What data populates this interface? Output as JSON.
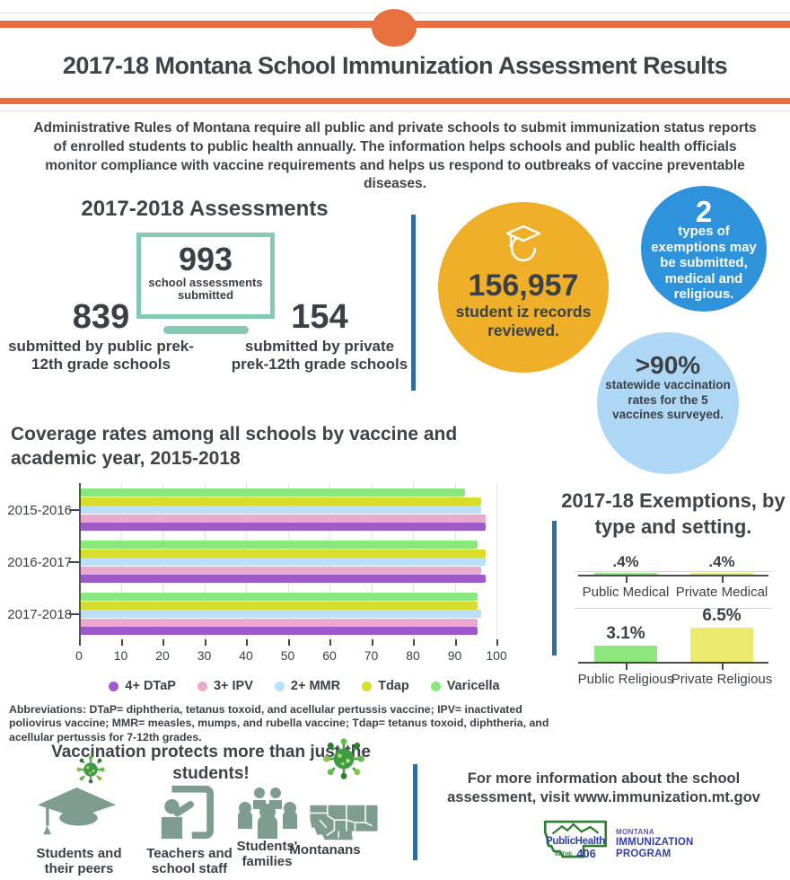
{
  "page": {
    "accent_orange": "#e7713f",
    "teal": "#85c8b3",
    "divider_blue": "#2d6f9e",
    "sage": "#7e9c8f",
    "text_dark": "#3a4045"
  },
  "header": {
    "title": "2017-18 Montana School Immunization Assessment Results"
  },
  "intro": "Administrative Rules of Montana require all public and private schools to submit immunization status reports of enrolled students to public health annually. The information helps schools and public health officials monitor compliance with vaccine requirements and helps us respond to outbreaks of vaccine preventable diseases.",
  "assessments": {
    "heading": "2017-2018 Assessments",
    "total_value": "993",
    "total_label": "school assessments submitted",
    "public_value": "839",
    "public_label": "submitted by public prek-12th grade schools",
    "private_value": "154",
    "private_label": "submitted by private prek-12th grade schools"
  },
  "badges": {
    "records": {
      "value": "156,957",
      "label": "student iz records reviewed.",
      "color": "#efaf28"
    },
    "exemption_types": {
      "value": "2",
      "label": "types of exemptions may be submitted, medical and religious.",
      "color": "#2e93db"
    },
    "coverage": {
      "value": ">90%",
      "label": "statewide vaccination rates for the 5 vaccines surveyed.",
      "color": "#aed7f5"
    }
  },
  "chart_data": [
    {
      "type": "bar",
      "orientation": "horizontal",
      "title": "Coverage rates among all schools by vaccine and academic year, 2015-2018",
      "categories": [
        "2015-2016",
        "2016-2017",
        "2017-2018"
      ],
      "series": [
        {
          "name": "4+ DTaP",
          "color": "#9c5bc8",
          "values": [
            97,
            97,
            95
          ]
        },
        {
          "name": "3+ IPV",
          "color": "#e9aacd",
          "values": [
            97,
            96,
            95
          ]
        },
        {
          "name": "2+ MMR",
          "color": "#b8dffb",
          "values": [
            96,
            97,
            96
          ]
        },
        {
          "name": "Tdap",
          "color": "#d8dc2a",
          "values": [
            96,
            97,
            95
          ]
        },
        {
          "name": "Varicella",
          "color": "#88e87e",
          "values": [
            92,
            95,
            95
          ]
        }
      ],
      "row_order_top_to_bottom": [
        "Varicella",
        "Tdap",
        "2+ MMR",
        "3+ IPV",
        "4+ DTaP"
      ],
      "xlim": [
        0,
        100
      ],
      "xticks": [
        0,
        10,
        20,
        30,
        40,
        50,
        60,
        70,
        80,
        90,
        100
      ],
      "grid": true,
      "legend_position": "bottom",
      "xlabel": "",
      "ylabel": ""
    },
    {
      "type": "bar",
      "orientation": "vertical",
      "title": "2017-18 Exemptions, by type and setting.",
      "panels": [
        {
          "categories": [
            "Public Medical",
            "Private Medical"
          ],
          "values": [
            0.4,
            0.4
          ],
          "value_labels": [
            ".4%",
            ".4%"
          ],
          "colors": [
            "#8de77d",
            "#ede96e"
          ],
          "ylim": [
            0,
            0.5
          ]
        },
        {
          "categories": [
            "Public Religious",
            "Private Religious"
          ],
          "values": [
            3.1,
            6.5
          ],
          "value_labels": [
            "3.1%",
            "6.5%"
          ],
          "colors": [
            "#8de77d",
            "#ede96e"
          ],
          "ylim": [
            0,
            10
          ]
        }
      ]
    }
  ],
  "abbreviations": "Abbreviations: DTaP= diphtheria, tetanus toxoid, and acellular pertussis vaccine; IPV= inactivated poliovirus vaccine; MMR= measles, mumps, and rubella vaccine; Tdap= tetanus toxoid, diphtheria, and acellular pertussis for 7-12th grades.",
  "protect": {
    "heading": "Vaccination protects more than just the students!",
    "items": [
      {
        "label": "Students and their peers",
        "icon": "graduation-cap-icon"
      },
      {
        "label": "Teachers and school staff",
        "icon": "teacher-board-icon"
      },
      {
        "label": "Students' families",
        "icon": "family-group-icon"
      },
      {
        "label": "Montanans",
        "icon": "montana-map-icon"
      }
    ]
  },
  "footer": {
    "info": "For more information about the school assessment, visit www.immunization.mt.gov",
    "logo": {
      "line1": "PublicHealth",
      "line2_small": "IN THE",
      "line2_num": "406",
      "org1": "MONTANA",
      "org2": "IMMUNIZATION",
      "org3": "PROGRAM"
    }
  }
}
